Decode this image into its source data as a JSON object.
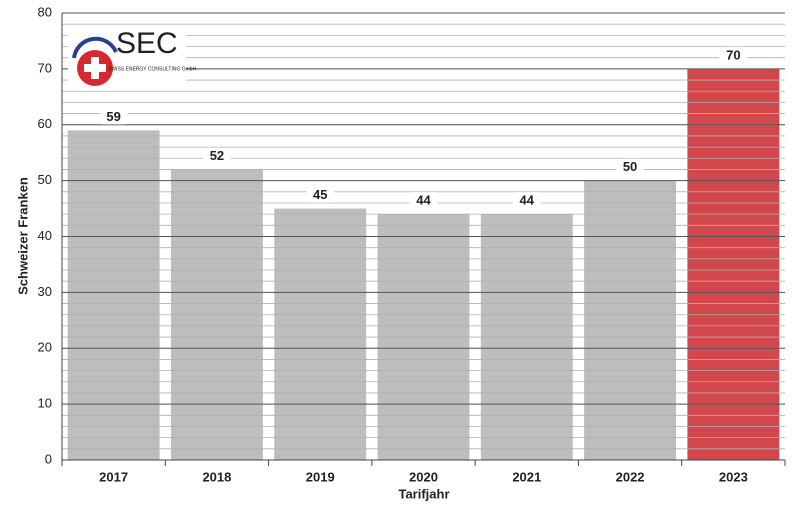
{
  "chart_data": {
    "type": "bar",
    "categories": [
      "2017",
      "2018",
      "2019",
      "2020",
      "2021",
      "2022",
      "2023"
    ],
    "values": [
      59,
      52,
      45,
      44,
      44,
      50,
      70
    ],
    "colors": [
      "#bdbdbd",
      "#bdbdbd",
      "#bdbdbd",
      "#bdbdbd",
      "#bdbdbd",
      "#bdbdbd",
      "#d2474b"
    ],
    "ylim": [
      0,
      80
    ],
    "yticks": [
      0,
      10,
      20,
      30,
      40,
      50,
      60,
      70,
      80
    ],
    "minor_grid_step": 2,
    "grid": true,
    "x_label": "Tarifjahr",
    "y_label": "Schweizer Franken",
    "logo": {
      "text": "SEC",
      "subtitle": "SWISS ENERGY CONSULTING GmbH"
    }
  }
}
